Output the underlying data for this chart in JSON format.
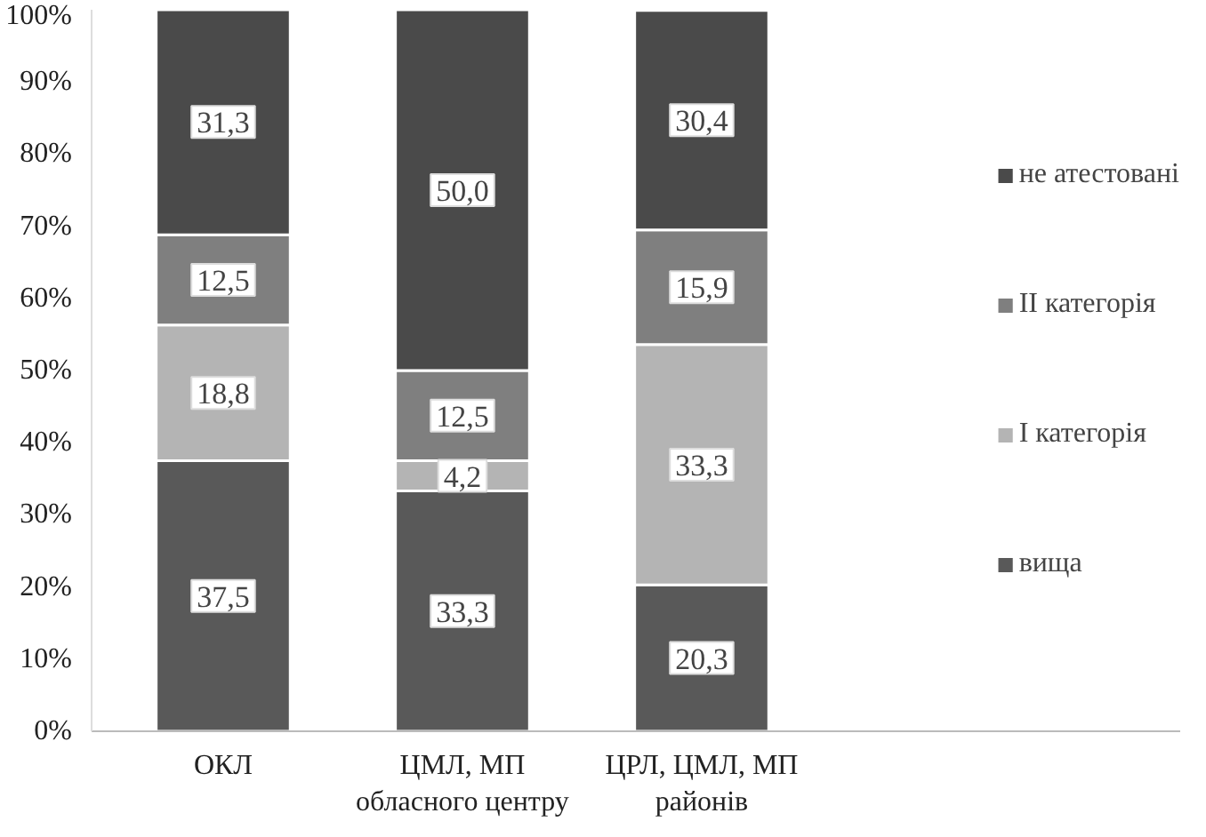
{
  "chart_data": {
    "type": "bar",
    "stacked": true,
    "categories": [
      "ОКЛ",
      "ЦМЛ, МП\nобласного центру",
      "ЦРЛ, ЦМЛ, МП\nрайонів"
    ],
    "series": [
      {
        "name": "вища",
        "color": "#595959",
        "values": [
          37.5,
          33.3,
          20.3
        ],
        "value_labels": [
          "37,5",
          "33,3",
          "20,3"
        ]
      },
      {
        "name": "І категорія",
        "color": "#b4b4b4",
        "values": [
          18.8,
          4.2,
          33.3
        ],
        "value_labels": [
          "18,8",
          "4,2",
          "33,3"
        ]
      },
      {
        "name": "ІІ категорія",
        "color": "#7f7f7f",
        "values": [
          12.5,
          12.5,
          15.9
        ],
        "value_labels": [
          "12,5",
          "12,5",
          "15,9"
        ]
      },
      {
        "name": "не атестовані",
        "color": "#4a4a4a",
        "values": [
          31.3,
          50.0,
          30.4
        ],
        "value_labels": [
          "31,3",
          "50,0",
          "30,4"
        ]
      }
    ],
    "ylim": [
      0,
      100
    ],
    "yticks": [
      {
        "value": 0,
        "label": "0%"
      },
      {
        "value": 10,
        "label": "10%"
      },
      {
        "value": 20,
        "label": "20%"
      },
      {
        "value": 30,
        "label": "30%"
      },
      {
        "value": 40,
        "label": "40%"
      },
      {
        "value": 50,
        "label": "50%"
      },
      {
        "value": 60,
        "label": "60%"
      },
      {
        "value": 70,
        "label": "70%"
      },
      {
        "value": 80,
        "label": "80%"
      },
      {
        "value": 90,
        "label": "90%"
      },
      {
        "value": 100,
        "label": "100%"
      }
    ],
    "legend": "right"
  }
}
